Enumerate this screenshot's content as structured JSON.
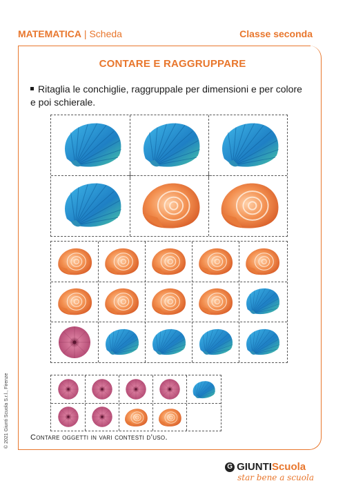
{
  "header": {
    "subject": "MATEMATICA",
    "separator": "|",
    "sheet": "Scheda",
    "grade": "Classe seconda"
  },
  "title": "CONTARE E RAGGRUPPARE",
  "instruction": "Ritaglia le conchiglie, raggruppale per dimensioni e per colore e poi schierale.",
  "footer_note": "Contare oggetti in vari contesti d’uso.",
  "copyright": "© 2021 Giunti Scuola S.r.l., Firenze",
  "logo": {
    "g": "G",
    "brand": "GIUNTI",
    "brand2": "Scuola",
    "tagline": "star bene a scuola"
  },
  "colors": {
    "accent": "#e8762c",
    "blue_shell": "#2a9fd6",
    "orange_shell": "#f08a3c",
    "pink_urchin": "#c0507a"
  }
}
